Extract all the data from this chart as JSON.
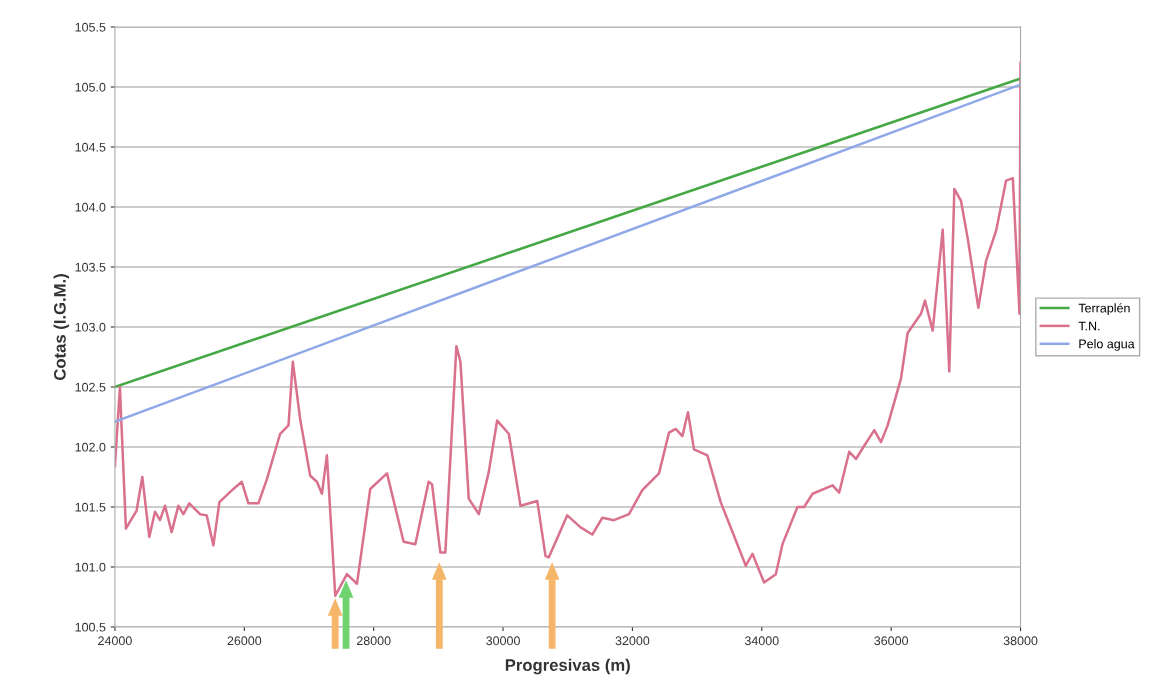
{
  "chart_data": {
    "type": "line",
    "xlabel": "Progresivas (m)",
    "ylabel": "Cotas (I.G.M.)",
    "xlim": [
      24000,
      38000
    ],
    "xticks": [
      24000,
      26000,
      28000,
      30000,
      32000,
      34000,
      36000,
      38000
    ],
    "ylim": [
      100.5,
      105.5
    ],
    "yticks": [
      {
        "value": 100.5,
        "label": "100.5"
      },
      {
        "value": 101.0,
        "label": "101.0"
      },
      {
        "value": 101.5,
        "label": "101.5"
      },
      {
        "value": 102.0,
        "label": "102.0"
      },
      {
        "value": 102.5,
        "label": "102.5"
      },
      {
        "value": 103.0,
        "label": "103.0"
      },
      {
        "value": 103.5,
        "label": "103.5"
      },
      {
        "value": 104.0,
        "label": "104.0"
      },
      {
        "value": 104.5,
        "label": "104.5"
      },
      {
        "value": 105.0,
        "label": "105.0"
      },
      {
        "value": 105.5,
        "label": "105.5"
      }
    ],
    "grid": "y",
    "legend": "right",
    "marker": "none",
    "line_style": "solid",
    "series": [
      {
        "name": "Terraplén",
        "color": "#44a844",
        "x": [
          24000,
          38000
        ],
        "values": [
          102.5,
          105.07
        ]
      },
      {
        "name": "T.N.",
        "color": "#d9708c",
        "x": [
          24000,
          24077,
          24100,
          24170,
          24258,
          24335,
          24423,
          24531,
          24619,
          24697,
          24774,
          24877,
          24980,
          25058,
          25150,
          25316,
          25419,
          25522,
          25615,
          25831,
          25961,
          26063,
          26218,
          26348,
          26554,
          26683,
          26750,
          26864,
          27019,
          27122,
          27200,
          27277,
          27406,
          27587,
          27742,
          27947,
          28206,
          28463,
          28644,
          28850,
          28902,
          29031,
          29108,
          29279,
          29341,
          29470,
          29625,
          29779,
          29909,
          30089,
          30270,
          30529,
          30657,
          30708,
          30993,
          31199,
          31380,
          31535,
          31715,
          31947,
          32153,
          32411,
          32566,
          32669,
          32772,
          32859,
          32952,
          33159,
          33365,
          33753,
          33856,
          34036,
          34217,
          34320,
          34552,
          34655,
          34785,
          35094,
          35197,
          35352,
          35456,
          35584,
          35739,
          35843,
          35946,
          36152,
          36255,
          36461,
          36523,
          36642,
          36797,
          36899,
          36977,
          37080,
          37183,
          37348,
          37467,
          37622,
          37777,
          37881,
          37984,
          38000
        ],
        "values": [
          101.84,
          102.5,
          102.2,
          101.32,
          101.4,
          101.47,
          101.75,
          101.25,
          101.46,
          101.39,
          101.51,
          101.29,
          101.51,
          101.44,
          101.53,
          101.44,
          101.43,
          101.18,
          101.54,
          101.65,
          101.71,
          101.53,
          101.53,
          101.73,
          102.11,
          102.18,
          102.71,
          102.23,
          101.76,
          101.71,
          101.61,
          101.93,
          100.76,
          100.94,
          100.86,
          101.65,
          101.78,
          101.21,
          101.19,
          101.71,
          101.69,
          101.12,
          101.12,
          102.84,
          102.71,
          101.57,
          101.44,
          101.79,
          102.22,
          102.11,
          101.51,
          101.55,
          101.09,
          101.08,
          101.43,
          101.33,
          101.27,
          101.41,
          101.39,
          101.44,
          101.64,
          101.78,
          102.12,
          102.15,
          102.09,
          102.29,
          101.98,
          101.93,
          101.54,
          101.01,
          101.11,
          100.87,
          100.94,
          101.19,
          101.5,
          101.5,
          101.61,
          101.68,
          101.62,
          101.96,
          101.9,
          102.01,
          102.14,
          102.04,
          102.18,
          102.57,
          102.95,
          103.11,
          103.22,
          102.97,
          103.81,
          102.63,
          104.15,
          104.05,
          103.74,
          103.16,
          103.55,
          103.8,
          104.22,
          104.24,
          103.11,
          105.2
        ]
      },
      {
        "name": "Pelo agua",
        "color": "#8fa8e8",
        "x": [
          24000,
          38000
        ],
        "values": [
          102.21,
          105.02
        ]
      }
    ]
  }
}
